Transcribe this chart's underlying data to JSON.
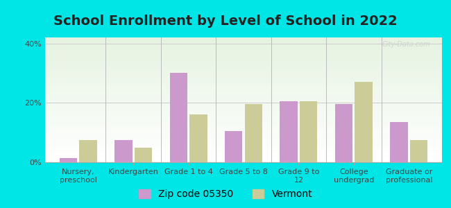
{
  "title": "School Enrollment by Level of School in 2022",
  "categories": [
    "Nursery,\npreschool",
    "Kindergarten",
    "Grade 1 to 4",
    "Grade 5 to 8",
    "Grade 9 to\n12",
    "College\nundergrad",
    "Graduate or\nprofessional"
  ],
  "zip_values": [
    1.5,
    7.5,
    30.0,
    10.5,
    20.5,
    19.5,
    13.5
  ],
  "state_values": [
    7.5,
    5.0,
    16.0,
    19.5,
    20.5,
    27.0,
    7.5
  ],
  "zip_color": "#cc99cc",
  "state_color": "#cccc99",
  "background_color": "#00e5e5",
  "ylim": [
    0,
    42
  ],
  "yticks": [
    0,
    20,
    40
  ],
  "ytick_labels": [
    "0%",
    "20%",
    "40%"
  ],
  "zip_label": "Zip code 05350",
  "state_label": "Vermont",
  "title_fontsize": 14,
  "legend_fontsize": 10,
  "tick_fontsize": 8,
  "watermark": "City-Data.com"
}
